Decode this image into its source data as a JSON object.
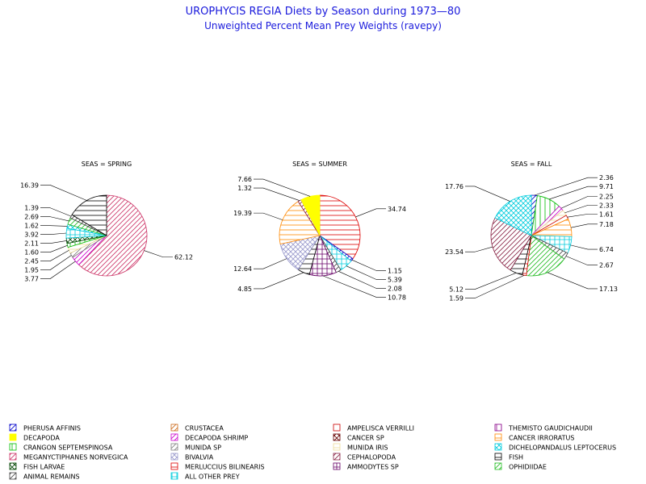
{
  "title": "UROPHYCIS REGIA Diets by Season during 1973—80",
  "subtitle": "Unweighted Percent Mean Prey Weights (ravepy)",
  "categories": [
    {
      "name": "PHERUSA AFFINIS",
      "color": "#0000cc",
      "pattern": "diag"
    },
    {
      "name": "CRUSTACEA",
      "color": "#cc6a1a",
      "pattern": "diag"
    },
    {
      "name": "AMPELISCA VERRILLI",
      "color": "#cc0000",
      "pattern": "none"
    },
    {
      "name": "THEMISTO GAUDICHAUDII",
      "color": "#880088",
      "pattern": "vert"
    },
    {
      "name": "DECAPODA",
      "color": "#ffff00",
      "pattern": "solid"
    },
    {
      "name": "DECAPODA SHRIMP",
      "color": "#cc00cc",
      "pattern": "diag"
    },
    {
      "name": "CANCER SP",
      "color": "#660000",
      "pattern": "xcross"
    },
    {
      "name": "CANCER IRRORATUS",
      "color": "#ff8800",
      "pattern": "horiz"
    },
    {
      "name": "CRANGON SEPTEMSPINOSA",
      "color": "#00bb00",
      "pattern": "vert"
    },
    {
      "name": "MUNIDA SP",
      "color": "#808080",
      "pattern": "diag"
    },
    {
      "name": "MUNIDA IRIS",
      "color": "#eedd99",
      "pattern": "horiz"
    },
    {
      "name": "DICHELOPANDALUS LEPTOCERUS",
      "color": "#00ccdd",
      "pattern": "xcross"
    },
    {
      "name": "MEGANYCTIPHANES NORVEGICA",
      "color": "#cc3366",
      "pattern": "diag"
    },
    {
      "name": "BIVALVIA",
      "color": "#9999cc",
      "pattern": "xcross"
    },
    {
      "name": "CEPHALOPODA",
      "color": "#882244",
      "pattern": "diag"
    },
    {
      "name": "FISH",
      "color": "#000000",
      "pattern": "horiz"
    },
    {
      "name": "FISH LARVAE",
      "color": "#004400",
      "pattern": "xcross"
    },
    {
      "name": "MERLUCCIUS BILINEARIS",
      "color": "#dd0000",
      "pattern": "horiz"
    },
    {
      "name": "AMMODYTES SP",
      "color": "#660066",
      "pattern": "grid"
    },
    {
      "name": "OPHIDIIDAE",
      "color": "#22bb22",
      "pattern": "diag"
    },
    {
      "name": "ANIMAL REMAINS",
      "color": "#444444",
      "pattern": "diag"
    },
    {
      "name": "ALL OTHER PREY",
      "color": "#00ccdd",
      "pattern": "grid"
    }
  ],
  "chart_data": [
    {
      "type": "pie",
      "title": "SEAS = SPRING",
      "slices": [
        {
          "category": "MEGANYCTIPHANES NORVEGICA",
          "value": 62.12
        },
        {
          "category": "DECAPODA SHRIMP",
          "value": 3.77
        },
        {
          "category": "MUNIDA SP",
          "value": 1.95
        },
        {
          "category": "MUNIDA IRIS",
          "value": 2.45
        },
        {
          "category": "CRANGON SEPTEMSPINOSA",
          "value": 1.6
        },
        {
          "category": "FISH LARVAE",
          "value": 2.11
        },
        {
          "category": "ALL OTHER PREY",
          "value": 3.92
        },
        {
          "category": "DICHELOPANDALUS LEPTOCERUS",
          "value": 1.62
        },
        {
          "category": "OPHIDIIDAE",
          "value": 2.69
        },
        {
          "category": "ANIMAL REMAINS",
          "value": 1.39
        },
        {
          "category": "FISH",
          "value": 16.39
        }
      ]
    },
    {
      "type": "pie",
      "title": "SEAS = SUMMER",
      "slices": [
        {
          "category": "MERLUCCIUS BILINEARIS",
          "value": 34.74
        },
        {
          "category": "PHERUSA AFFINIS",
          "value": 1.15
        },
        {
          "category": "ALL OTHER PREY",
          "value": 5.39
        },
        {
          "category": "ANIMAL REMAINS",
          "value": 2.08
        },
        {
          "category": "AMMODYTES SP",
          "value": 10.78
        },
        {
          "category": "FISH",
          "value": 4.85
        },
        {
          "category": "BIVALVIA",
          "value": 12.64
        },
        {
          "category": "CANCER IRRORATUS",
          "value": 19.39
        },
        {
          "category": "CEPHALOPODA",
          "value": 1.32
        },
        {
          "category": "DECAPODA",
          "value": 7.66
        }
      ]
    },
    {
      "type": "pie",
      "title": "SEAS = FALL",
      "slices": [
        {
          "category": "PHERUSA AFFINIS",
          "value": 2.36
        },
        {
          "category": "CRANGON SEPTEMSPINOSA",
          "value": 9.71
        },
        {
          "category": "DECAPODA SHRIMP",
          "value": 2.25
        },
        {
          "category": "MUNIDA IRIS",
          "value": 2.33
        },
        {
          "category": "AMPELISCA VERRILLI",
          "value": 1.61
        },
        {
          "category": "CANCER IRRORATUS",
          "value": 7.18
        },
        {
          "category": "ALL OTHER PREY",
          "value": 6.74
        },
        {
          "category": "ANIMAL REMAINS",
          "value": 2.67
        },
        {
          "category": "OPHIDIIDAE",
          "value": 17.13
        },
        {
          "category": "MERLUCCIUS BILINEARIS",
          "value": 1.59
        },
        {
          "category": "FISH",
          "value": 5.12
        },
        {
          "category": "CEPHALOPODA",
          "value": 23.54
        },
        {
          "category": "DICHELOPANDALUS LEPTOCERUS",
          "value": 17.76
        }
      ]
    }
  ]
}
